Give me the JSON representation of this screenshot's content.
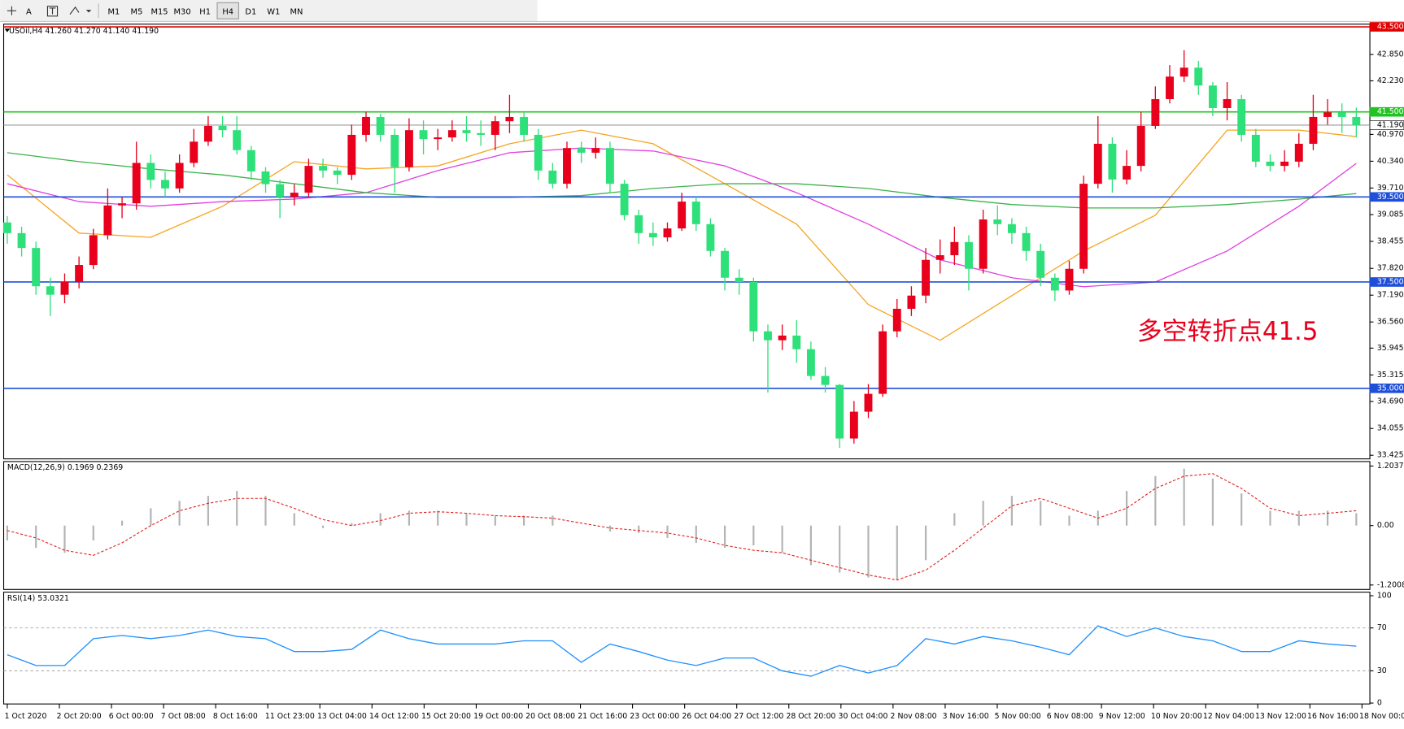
{
  "toolbar": {
    "tools": [
      "A"
    ],
    "timeframes": [
      "M1",
      "M5",
      "M15",
      "M30",
      "H1",
      "H4",
      "D1",
      "W1",
      "MN"
    ],
    "active": "H4"
  },
  "chart_data": [
    {
      "type": "candlestick",
      "title": "USOil,H4  41.260 41.270 41.140 41.190",
      "annotation": "多空转折点41.5",
      "up_color": "#e8001c",
      "down_color": "#2ee07a",
      "time_labels": [
        "1 Oct 2020",
        "2 Oct 20:00",
        "6 Oct 00:00",
        "7 Oct 08:00",
        "8 Oct 16:00",
        "11 Oct 23:00",
        "13 Oct 04:00",
        "14 Oct 12:00",
        "15 Oct 20:00",
        "19 Oct 00:00",
        "20 Oct 08:00",
        "21 Oct 16:00",
        "23 Oct 00:00",
        "26 Oct 04:00",
        "27 Oct 12:00",
        "28 Oct 20:00",
        "30 Oct 04:00",
        "2 Nov 08:00",
        "3 Nov 16:00",
        "5 Nov 00:00",
        "6 Nov 08:00",
        "9 Nov 12:00",
        "10 Nov 20:00",
        "12 Nov 04:00",
        "13 Nov 12:00",
        "16 Nov 16:00",
        "18 Nov 00:00"
      ],
      "open": [
        38.9,
        38.65,
        38.3,
        37.4,
        37.2,
        37.5,
        37.9,
        38.6,
        39.3,
        39.35,
        40.3,
        39.9,
        39.7,
        40.3,
        40.8,
        41.17,
        41.07,
        40.6,
        40.1,
        39.8,
        39.5,
        39.6,
        40.23,
        40.12,
        40.02,
        40.96,
        41.38,
        40.96,
        40.2,
        41.07,
        40.86,
        40.9,
        41.07,
        41.0,
        40.96,
        41.28,
        41.38,
        40.96,
        40.12,
        39.81,
        40.65,
        40.54,
        40.65,
        39.81,
        39.07,
        38.65,
        38.55,
        38.76,
        39.39,
        38.86,
        38.23,
        37.6,
        37.5,
        36.34,
        36.13,
        36.24,
        35.92,
        35.29,
        35.08,
        33.82,
        34.45,
        34.87,
        36.34,
        36.87,
        37.18,
        38.02,
        38.13,
        38.44,
        37.81,
        38.97,
        38.86,
        38.65,
        38.23,
        37.6,
        37.3,
        37.81,
        39.81,
        40.75,
        39.91,
        40.23,
        41.17,
        41.8,
        42.33,
        42.54,
        42.12,
        41.59,
        41.8,
        40.96,
        40.33,
        40.23,
        40.33,
        40.75,
        41.38,
        41.49,
        41.38
      ],
      "high": [
        39.05,
        38.8,
        38.45,
        37.6,
        37.7,
        38.1,
        38.75,
        39.7,
        39.5,
        40.8,
        40.5,
        40.1,
        40.5,
        41.1,
        41.4,
        41.4,
        41.4,
        40.7,
        40.2,
        39.9,
        39.8,
        40.4,
        40.4,
        40.2,
        41.2,
        41.5,
        41.45,
        41.1,
        41.35,
        41.3,
        41.1,
        41.3,
        41.4,
        41.3,
        41.4,
        41.9,
        41.5,
        41.1,
        40.3,
        40.8,
        40.8,
        40.9,
        40.8,
        39.9,
        39.2,
        38.9,
        38.9,
        39.6,
        39.5,
        39.0,
        38.3,
        37.8,
        37.6,
        36.5,
        36.5,
        36.6,
        36.1,
        35.5,
        35.1,
        34.7,
        35.1,
        36.5,
        37.1,
        37.4,
        38.3,
        38.5,
        38.8,
        38.6,
        39.2,
        39.3,
        39.0,
        38.8,
        38.4,
        37.7,
        38.0,
        40.0,
        41.4,
        40.9,
        40.6,
        41.5,
        42.1,
        42.6,
        42.95,
        42.7,
        42.2,
        42.2,
        41.9,
        41.1,
        40.5,
        40.6,
        41.0,
        41.9,
        41.8,
        41.7,
        41.6
      ],
      "low": [
        38.4,
        38.1,
        37.2,
        36.7,
        37.0,
        37.35,
        37.8,
        38.5,
        39.0,
        39.2,
        39.7,
        39.5,
        39.6,
        40.2,
        40.7,
        40.9,
        40.5,
        39.9,
        39.6,
        39.0,
        39.3,
        39.5,
        39.95,
        39.8,
        39.9,
        40.8,
        40.8,
        39.6,
        40.1,
        40.5,
        40.6,
        40.8,
        40.8,
        40.7,
        40.6,
        41.0,
        40.8,
        39.9,
        39.7,
        39.7,
        40.3,
        40.4,
        39.6,
        38.95,
        38.4,
        38.35,
        38.45,
        38.7,
        38.7,
        38.1,
        37.3,
        37.2,
        36.1,
        34.9,
        35.9,
        35.6,
        35.2,
        34.9,
        33.6,
        33.7,
        34.3,
        34.8,
        36.2,
        36.7,
        37.0,
        37.7,
        37.9,
        37.3,
        37.7,
        38.6,
        38.4,
        38.0,
        37.4,
        37.05,
        37.2,
        37.7,
        39.7,
        39.6,
        39.8,
        40.1,
        41.1,
        41.7,
        42.2,
        41.9,
        41.4,
        41.3,
        40.8,
        40.2,
        40.1,
        40.1,
        40.2,
        40.6,
        41.2,
        41.0,
        40.9
      ],
      "close": [
        38.65,
        38.3,
        37.4,
        37.2,
        37.5,
        37.9,
        38.6,
        39.3,
        39.35,
        40.3,
        39.9,
        39.7,
        40.3,
        40.8,
        41.17,
        41.07,
        40.6,
        40.1,
        39.8,
        39.5,
        39.6,
        40.23,
        40.12,
        40.02,
        40.96,
        41.38,
        40.96,
        40.2,
        41.07,
        40.86,
        40.9,
        41.07,
        41.0,
        40.96,
        41.28,
        41.38,
        40.96,
        40.12,
        39.81,
        40.65,
        40.54,
        40.65,
        39.81,
        39.07,
        38.65,
        38.55,
        38.76,
        39.39,
        38.86,
        38.23,
        37.6,
        37.5,
        36.34,
        36.13,
        36.24,
        35.92,
        35.29,
        35.08,
        33.82,
        34.45,
        34.87,
        36.34,
        36.87,
        37.18,
        38.02,
        38.13,
        38.44,
        37.81,
        38.97,
        38.86,
        38.65,
        38.23,
        37.6,
        37.3,
        37.81,
        39.81,
        40.75,
        39.91,
        40.23,
        41.17,
        41.8,
        42.33,
        42.54,
        42.12,
        41.59,
        41.8,
        40.96,
        40.33,
        40.23,
        40.33,
        40.75,
        41.38,
        41.49,
        41.38,
        41.19
      ],
      "ma_x": [
        0,
        5,
        10,
        15,
        20,
        25,
        30,
        35,
        40,
        45,
        50,
        55,
        60,
        65,
        70,
        75,
        80,
        85,
        90,
        94
      ],
      "series": [
        {
          "color": "#f5a623",
          "values": [
            40.02,
            38.65,
            38.55,
            39.28,
            40.33,
            40.16,
            40.23,
            40.75,
            41.07,
            40.75,
            39.81,
            38.86,
            36.97,
            36.13,
            37.18,
            38.23,
            39.07,
            41.07,
            41.07,
            40.92
          ]
        },
        {
          "color": "#e040e0",
          "values": [
            39.81,
            39.39,
            39.28,
            39.39,
            39.45,
            39.6,
            40.12,
            40.54,
            40.65,
            40.58,
            40.23,
            39.6,
            38.86,
            38.02,
            37.6,
            37.39,
            37.5,
            38.23,
            39.28,
            40.29
          ]
        },
        {
          "color": "#3cb34a",
          "values": [
            40.54,
            40.33,
            40.16,
            40.02,
            39.81,
            39.6,
            39.49,
            39.49,
            39.53,
            39.7,
            39.81,
            39.81,
            39.7,
            39.49,
            39.32,
            39.24,
            39.24,
            39.32,
            39.45,
            39.58
          ]
        }
      ],
      "levels": [
        {
          "value": 43.5,
          "label": "43.500",
          "color": "#e00000"
        },
        {
          "value": 41.5,
          "label": "41.500",
          "color": "#22c322"
        },
        {
          "value": 41.19,
          "label": "41.190",
          "color": "#9a9a9a"
        },
        {
          "value": 39.5,
          "label": "39.500",
          "color": "#1f4fd8"
        },
        {
          "value": 37.5,
          "label": "37.500",
          "color": "#1f4fd8"
        },
        {
          "value": 35.0,
          "label": "35.000",
          "color": "#1f4fd8"
        }
      ],
      "ylim": [
        33.425,
        43.5
      ],
      "yticks": [
        {
          "value": 42.85,
          "label": "42.850"
        },
        {
          "value": 42.23,
          "label": "42.230"
        },
        {
          "value": 40.97,
          "label": "40.970"
        },
        {
          "value": 40.34,
          "label": "40.340"
        },
        {
          "value": 39.71,
          "label": "39.710"
        },
        39.085,
        38.455,
        {
          "value": 37.82,
          "label": "37.820"
        },
        {
          "value": 37.19,
          "label": "37.190"
        },
        {
          "value": 36.56,
          "label": "36.560"
        },
        35.945,
        35.315,
        {
          "value": 34.69,
          "label": "34.690"
        },
        34.055,
        33.425
      ]
    },
    {
      "type": "macd",
      "title": "MACD(12,26,9) 0.1969 0.2369",
      "hist_color": "#b4b4b4",
      "signal_color": "#e02020",
      "x": [
        0,
        2,
        4,
        6,
        8,
        10,
        12,
        14,
        16,
        18,
        20,
        22,
        24,
        26,
        28,
        30,
        32,
        34,
        36,
        38,
        40,
        42,
        44,
        46,
        48,
        50,
        52,
        54,
        56,
        58,
        60,
        62,
        64,
        66,
        68,
        70,
        72,
        74,
        76,
        78,
        80,
        82,
        84,
        86,
        88,
        90,
        92,
        94
      ],
      "histogram": [
        -0.3,
        -0.45,
        -0.55,
        -0.3,
        0.1,
        0.35,
        0.5,
        0.6,
        0.7,
        0.6,
        0.25,
        -0.05,
        0.05,
        0.25,
        0.3,
        0.3,
        0.25,
        0.2,
        0.2,
        0.2,
        0.0,
        -0.12,
        -0.15,
        -0.25,
        -0.35,
        -0.45,
        -0.4,
        -0.55,
        -0.8,
        -0.95,
        -1.05,
        -1.1,
        -0.7,
        0.25,
        0.5,
        0.6,
        0.5,
        0.2,
        0.3,
        0.7,
        1.0,
        1.15,
        0.95,
        0.65,
        0.3,
        0.3,
        0.3,
        0.25
      ],
      "signal": [
        -0.1,
        -0.25,
        -0.5,
        -0.6,
        -0.35,
        0.0,
        0.3,
        0.45,
        0.55,
        0.55,
        0.35,
        0.12,
        0.0,
        0.1,
        0.25,
        0.28,
        0.25,
        0.2,
        0.18,
        0.15,
        0.05,
        -0.05,
        -0.1,
        -0.15,
        -0.25,
        -0.4,
        -0.5,
        -0.55,
        -0.7,
        -0.85,
        -1.0,
        -1.1,
        -0.9,
        -0.5,
        -0.05,
        0.4,
        0.55,
        0.35,
        0.15,
        0.35,
        0.75,
        1.0,
        1.05,
        0.75,
        0.35,
        0.2,
        0.25,
        0.3
      ],
      "ylim": [
        -1.2008,
        1.2037
      ],
      "yticks": [
        1.2037,
        {
          "value": 0,
          "label": "0.00"
        },
        -1.2008
      ]
    },
    {
      "type": "line",
      "title": "RSI(14) 53.0321",
      "color": "#1e90ff",
      "x": [
        0,
        2,
        4,
        6,
        8,
        10,
        12,
        14,
        16,
        18,
        20,
        22,
        24,
        26,
        28,
        30,
        32,
        34,
        36,
        38,
        40,
        42,
        44,
        46,
        48,
        50,
        52,
        54,
        56,
        58,
        60,
        62,
        64,
        66,
        68,
        70,
        72,
        74,
        76,
        78,
        80,
        82,
        84,
        86,
        88,
        90,
        92,
        94
      ],
      "values": [
        45,
        35,
        35,
        60,
        63,
        60,
        63,
        68,
        62,
        60,
        48,
        48,
        50,
        68,
        60,
        55,
        55,
        55,
        58,
        58,
        38,
        55,
        48,
        40,
        35,
        42,
        42,
        30,
        25,
        35,
        28,
        35,
        60,
        55,
        62,
        58,
        52,
        45,
        72,
        62,
        70,
        62,
        58,
        48,
        48,
        58,
        55,
        53
      ],
      "levels": [
        70,
        30
      ],
      "ylim": [
        0,
        100
      ],
      "yticks": [
        100,
        70,
        30,
        0
      ]
    }
  ]
}
